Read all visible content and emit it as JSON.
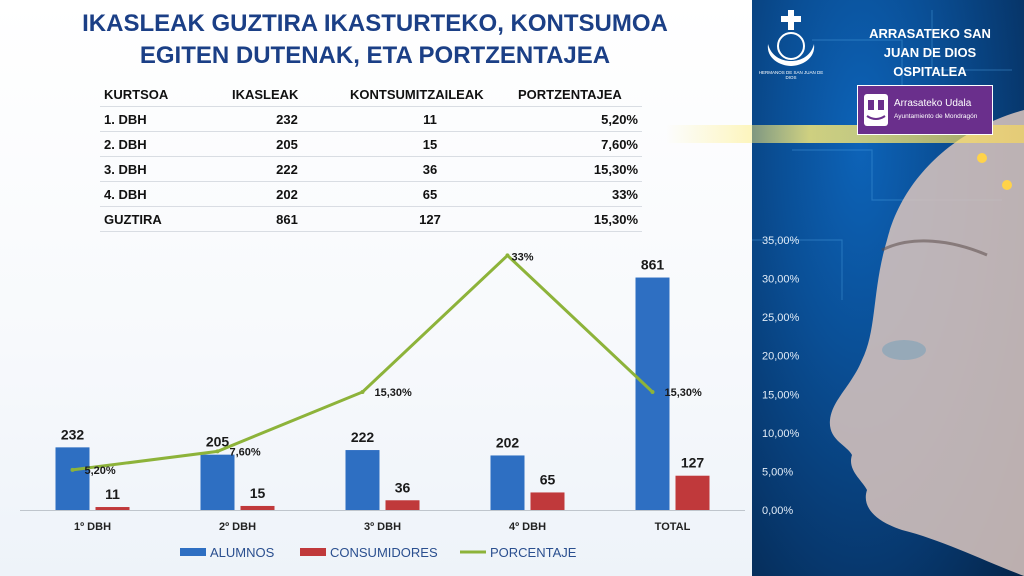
{
  "title_line1": "IKASLEAK GUZTIRA IKASTURTEKO, KONTSUMOA",
  "title_line2": "EGITEN DUTENAK, ETA PORTZENTAJEA",
  "table": {
    "headers": [
      "KURTSOA",
      "IKASLEAK",
      "KONTSUMITZAILEAK",
      "PORTZENTAJEA"
    ],
    "rows": [
      [
        "1. DBH",
        "232",
        "11",
        "5,20%"
      ],
      [
        "2. DBH",
        "205",
        "15",
        "7,60%"
      ],
      [
        "3. DBH",
        "222",
        "36",
        "15,30%"
      ],
      [
        "4. DBH",
        "202",
        "65",
        "33%"
      ],
      [
        "GUZTIRA",
        "861",
        "127",
        "15,30%"
      ]
    ]
  },
  "sidebar": {
    "org_name_lines": [
      "ARRASATEKO SAN",
      "JUAN DE DIOS",
      "OSPITALEA"
    ],
    "seal_caption": "HERMANOS DE SAN JUAN DE DIOS",
    "udala_line1": "Arrasateko Udala",
    "udala_line2": "Ayuntamiento de Mondragón"
  },
  "colors": {
    "alumnos": "#2e6fc2",
    "consumidores": "#c0393b",
    "porcentaje": "#8db33a",
    "title": "#1b3f86",
    "udala": "#6a2f8c"
  },
  "chart_data": {
    "type": "bar",
    "categories": [
      "1º DBH",
      "2º DBH",
      "3º DBH",
      "4º DBH",
      "TOTAL"
    ],
    "series": [
      {
        "name": "ALUMNOS",
        "type": "bar",
        "values": [
          232,
          205,
          222,
          202,
          861
        ],
        "labels": [
          "232",
          "205",
          "222",
          "202",
          "861"
        ]
      },
      {
        "name": "CONSUMIDORES",
        "type": "bar",
        "values": [
          11,
          15,
          36,
          65,
          127
        ],
        "labels": [
          "11",
          "15",
          "36",
          "65",
          "127"
        ]
      },
      {
        "name": "PORCENTAJE",
        "type": "line",
        "axis": "secondary",
        "values": [
          5.2,
          7.6,
          15.3,
          33,
          15.3
        ],
        "labels": [
          "5,20%",
          "7,60%",
          "15,30%",
          "33%",
          "15,30%"
        ]
      }
    ],
    "ylim": [
      0,
      1000
    ],
    "y2lim": [
      0,
      35
    ],
    "y2_ticks": [
      "0,00%",
      "5,00%",
      "10,00%",
      "15,00%",
      "20,00%",
      "25,00%",
      "30,00%",
      "35,00%"
    ],
    "legend": "bottom",
    "grid": false
  }
}
